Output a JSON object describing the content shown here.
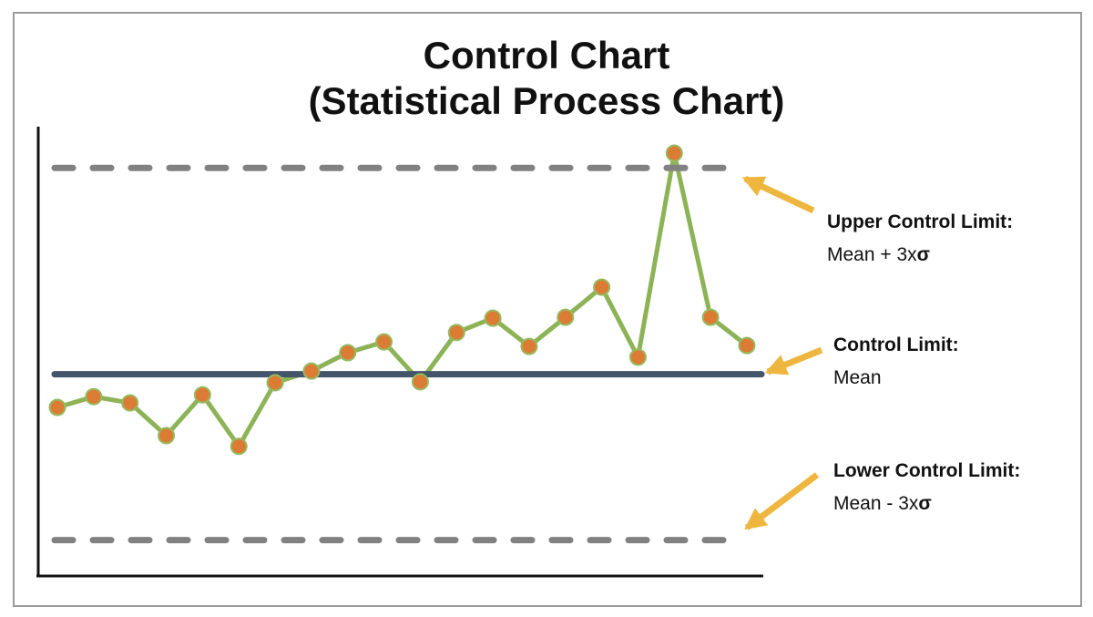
{
  "page": {
    "background": "#ffffff",
    "border_color": "#9b9b9b"
  },
  "title": {
    "line1": "Control Chart",
    "line2": "(Statistical Process Chart)"
  },
  "annotations": [
    {
      "id": "ucl",
      "label": "Upper Control Limit:",
      "formula": "Mean + 3x",
      "sigma": "σ"
    },
    {
      "id": "mean",
      "label": "Control Limit:",
      "formula": "Mean",
      "sigma": ""
    },
    {
      "id": "lcl",
      "label": "Lower Control Limit:",
      "formula": "Mean - 3x",
      "sigma": "σ"
    }
  ],
  "colors": {
    "data_line": "#8CB356",
    "data_point_fill": "#DC7B33",
    "data_point_stroke": "#96BA60",
    "control_limit_dash": "#818181",
    "mean_line": "#44546A",
    "arrow": "#EEB63E",
    "axis": "#111111",
    "text": "#111111"
  },
  "chart_data": {
    "type": "line",
    "title": "Control Chart (Statistical Process Chart)",
    "xlabel": "",
    "ylabel": "",
    "grid": false,
    "legend": false,
    "ylim": [
      0,
      100
    ],
    "x": [
      1,
      2,
      3,
      4,
      5,
      6,
      7,
      8,
      9,
      10,
      11,
      12,
      13,
      14,
      15,
      16,
      17,
      18,
      19,
      20
    ],
    "values": [
      37.6,
      40.0,
      38.6,
      31.3,
      40.4,
      28.9,
      43.1,
      45.7,
      49.8,
      52.2,
      43.3,
      54.3,
      57.5,
      51.2,
      57.7,
      64.4,
      48.8,
      94.3,
      57.7,
      51.4
    ],
    "reference_lines": {
      "upper_control_limit": 91,
      "mean": 45,
      "lower_control_limit": 8
    }
  }
}
